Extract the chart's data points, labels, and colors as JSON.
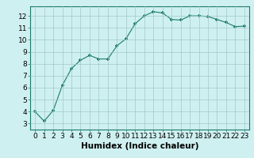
{
  "x": [
    0,
    1,
    2,
    3,
    4,
    5,
    6,
    7,
    8,
    9,
    10,
    11,
    12,
    13,
    14,
    15,
    16,
    17,
    18,
    19,
    20,
    21,
    22,
    23
  ],
  "y": [
    4.0,
    3.2,
    4.1,
    6.2,
    7.6,
    8.3,
    8.7,
    8.4,
    8.4,
    9.5,
    10.1,
    11.35,
    12.0,
    12.35,
    12.25,
    11.7,
    11.65,
    12.0,
    12.0,
    11.95,
    11.7,
    11.45,
    11.1,
    11.15
  ],
  "line_color": "#1a7a6a",
  "marker_color": "#1a7a6a",
  "bg_color": "#cff0f0",
  "grid_color": "#a0c8c8",
  "xlabel": "Humidex (Indice chaleur)",
  "ylim": [
    2.5,
    12.8
  ],
  "xlim": [
    -0.5,
    23.5
  ],
  "yticks": [
    3,
    4,
    5,
    6,
    7,
    8,
    9,
    10,
    11,
    12
  ],
  "xticks": [
    0,
    1,
    2,
    3,
    4,
    5,
    6,
    7,
    8,
    9,
    10,
    11,
    12,
    13,
    14,
    15,
    16,
    17,
    18,
    19,
    20,
    21,
    22,
    23
  ],
  "xtick_labels": [
    "0",
    "1",
    "2",
    "3",
    "4",
    "5",
    "6",
    "7",
    "8",
    "9",
    "10",
    "11",
    "12",
    "13",
    "14",
    "15",
    "16",
    "17",
    "18",
    "19",
    "20",
    "21",
    "22",
    "23"
  ],
  "xlabel_fontsize": 7.5,
  "tick_fontsize": 6.5
}
